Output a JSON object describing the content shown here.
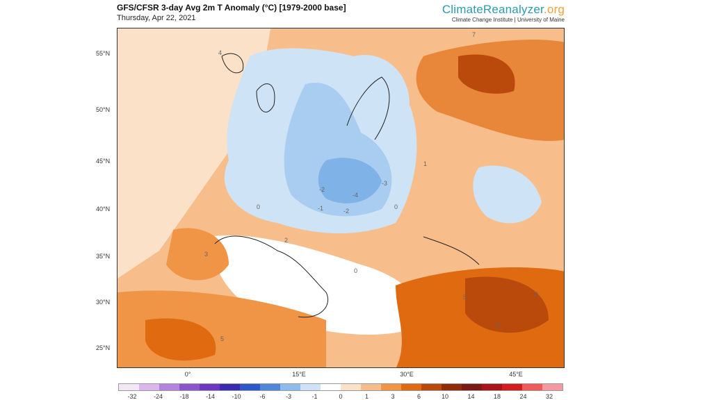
{
  "header": {
    "title": "GFS/CFSR 3-day Avg 2m T Anomaly (°C) [1979-2000 base]",
    "date": "Thursday, Apr 22, 2021",
    "brand_main": "ClimateReanalyzer",
    "brand_suffix": ".org",
    "brand_sub": "Climate Change Institute | University of Maine"
  },
  "axes": {
    "lat_labels": [
      "55°N",
      "50°N",
      "45°N",
      "40°N",
      "35°N",
      "30°N",
      "25°N"
    ],
    "lon_labels": [
      "0°",
      "15°E",
      "30°E",
      "45°E"
    ]
  },
  "colorbar": {
    "ticks": [
      "-32",
      "-24",
      "-18",
      "-14",
      "-10",
      "-6",
      "-3",
      "-1",
      "0",
      "1",
      "3",
      "6",
      "10",
      "14",
      "18",
      "24",
      "32"
    ],
    "colors": [
      "#f3e6f5",
      "#d9b7ec",
      "#b483de",
      "#8c55cc",
      "#6b38bf",
      "#3a2bb0",
      "#2f56c8",
      "#4f86d8",
      "#8cbbec",
      "#cfe3f6",
      "#ffffff",
      "#fbe1c8",
      "#f7be8c",
      "#f09445",
      "#e06a10",
      "#b94a0c",
      "#8e2d08",
      "#7a1a14",
      "#a8141a",
      "#d21d21",
      "#f05a5a",
      "#f59aa0"
    ]
  },
  "map_labels": {
    "contours": [
      "-2",
      "-3",
      "-4",
      "-1",
      "-2",
      "0",
      "0",
      "0",
      "1",
      "2",
      "3",
      "5",
      "5",
      "6",
      "6",
      "7",
      "4"
    ]
  }
}
